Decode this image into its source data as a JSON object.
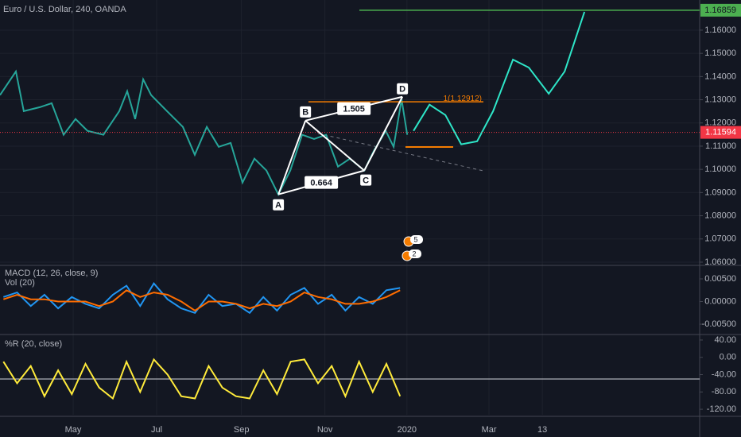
{
  "header": {
    "title": "Euro / U.S. Dollar, 240, OANDA"
  },
  "chart_data": [
    {
      "type": "line",
      "xlim": [
        67.5,
        579
      ],
      "ylim": [
        1.0593,
        1.173
      ],
      "xticks": [
        {
          "value": 121,
          "label": "May"
        },
        {
          "value": 182,
          "label": "Jul"
        },
        {
          "value": 244,
          "label": "Sep"
        },
        {
          "value": 305,
          "label": "Nov"
        },
        {
          "value": 365,
          "label": "2020"
        },
        {
          "value": 425,
          "label": "Mar"
        },
        {
          "value": 464,
          "label": "13"
        }
      ],
      "yticks": [
        {
          "value": 1.06,
          "label": "1.06000"
        },
        {
          "value": 1.07,
          "label": "1.07000"
        },
        {
          "value": 1.08,
          "label": "1.08000"
        },
        {
          "value": 1.09,
          "label": "1.09000"
        },
        {
          "value": 1.1,
          "label": "1.10000"
        },
        {
          "value": 1.11,
          "label": "1.11000"
        },
        {
          "value": 1.12,
          "label": "1.12000"
        },
        {
          "value": 1.13,
          "label": "1.13000"
        },
        {
          "value": 1.14,
          "label": "1.14000"
        },
        {
          "value": 1.15,
          "label": "1.15000"
        },
        {
          "value": 1.16,
          "label": "1.16000"
        }
      ],
      "grid": true,
      "series": [
        {
          "color": "#26a69a",
          "x": [
            67.5,
            79.1,
            84.9,
            96.6,
            105.3,
            114.0,
            122.7,
            131.5,
            143.1,
            154.7,
            160.5,
            166.3,
            172.2,
            178.0,
            189.6,
            201.2,
            209.9,
            218.7,
            227.4,
            236.1,
            244.8,
            253.5,
            262.3,
            271.0,
            279.7,
            288.4,
            297.1,
            305.9,
            314.6,
            323.3,
            333.8,
            340.8,
            349.5,
            355.3,
            361.1,
            365.2
          ],
          "values": [
            1.132,
            1.1422,
            1.1251,
            1.1268,
            1.1285,
            1.1149,
            1.1217,
            1.1166,
            1.1149,
            1.1251,
            1.1337,
            1.1217,
            1.1388,
            1.132,
            1.1251,
            1.1183,
            1.1063,
            1.1183,
            1.1097,
            1.1114,
            1.0943,
            1.1046,
            1.0995,
            1.0892,
            1.0995,
            1.1149,
            1.1131,
            1.1149,
            1.1012,
            1.1046,
            1.0995,
            1.108,
            1.1166,
            1.1097,
            1.1302,
            1.1149
          ]
        },
        {
          "color": "#2ee6c8",
          "x": [
            369.8,
            381.5,
            393.1,
            404.7,
            416.3,
            428.0,
            442.5,
            454.1,
            468.7,
            480.3,
            494.8
          ],
          "values": [
            1.1166,
            1.1279,
            1.1234,
            1.1108,
            1.1121,
            1.1251,
            1.1473,
            1.1439,
            1.1326,
            1.1422,
            1.1679
          ]
        }
      ],
      "levels": [
        {
          "value": 1.16859,
          "label": "1.16859",
          "color": "#4caf50"
        },
        {
          "value": 1.12912,
          "label": "1(1.12912)",
          "color": "#f57c00"
        },
        {
          "value": 1.11594,
          "label": "1.11594",
          "color": "#f23645"
        }
      ],
      "pattern": {
        "labels": [
          "A",
          "B",
          "C",
          "D"
        ],
        "x": [
          271.0,
          290.8,
          333.8,
          361.7
        ],
        "values": [
          1.0892,
          1.121,
          1.0995,
          1.1313
        ],
        "ratios": [
          0.664,
          1.505
        ]
      },
      "events": [
        5,
        2
      ]
    },
    {
      "type": "line",
      "title": "MACD (12, 26, close, 9)",
      "subtitle": "Vol (20)",
      "ylim": [
        -0.0071,
        0.00763
      ],
      "yticks": [
        {
          "value": 0.005,
          "label": "0.00500"
        },
        {
          "value": 0,
          "label": "0.00000"
        },
        {
          "value": -0.005,
          "label": "-0.00500"
        }
      ],
      "series": [
        {
          "color": "#2196f3",
          "x": [
            70,
            80,
            90,
            100,
            110,
            120,
            130,
            140,
            150,
            160,
            170,
            180,
            190,
            200,
            210,
            220,
            230,
            240,
            250,
            260,
            270,
            280,
            290,
            300,
            310,
            320,
            330,
            340,
            350,
            360
          ],
          "values": [
            0.001,
            0.002,
            -0.001,
            0.0015,
            -0.0015,
            0.001,
            -0.0005,
            -0.0015,
            0.0015,
            0.0035,
            -0.001,
            0.004,
            0.0005,
            -0.0015,
            -0.0025,
            0.0015,
            -0.001,
            -0.0005,
            -0.0025,
            0.001,
            -0.002,
            0.0015,
            0.003,
            -0.0005,
            0.0015,
            -0.002,
            0.001,
            -0.0005,
            0.0025,
            0.003
          ]
        },
        {
          "color": "#ff6d00",
          "x": [
            70,
            80,
            90,
            100,
            110,
            120,
            130,
            140,
            150,
            160,
            170,
            180,
            190,
            200,
            210,
            220,
            230,
            240,
            250,
            260,
            270,
            280,
            290,
            300,
            310,
            320,
            330,
            340,
            350,
            360
          ],
          "values": [
            0.0005,
            0.0015,
            0.0005,
            0.0005,
            0,
            0,
            0,
            -0.001,
            0,
            0.0025,
            0.001,
            0.002,
            0.0015,
            0,
            -0.002,
            0,
            0,
            -0.0005,
            -0.0015,
            -0.0005,
            -0.001,
            0,
            0.002,
            0.001,
            0.0005,
            -0.0005,
            -0.0005,
            0,
            0.001,
            0.0025
          ]
        }
      ]
    },
    {
      "type": "line",
      "title": "%R (20, close)",
      "ylim": [
        -132.7,
        50.9
      ],
      "yticks": [
        {
          "value": 40,
          "label": "40.00"
        },
        {
          "value": 0,
          "label": "0.00"
        },
        {
          "value": -40,
          "label": "-40.00"
        },
        {
          "value": -80,
          "label": "-80.00"
        },
        {
          "value": -120,
          "label": "-120.00"
        }
      ],
      "series": [
        {
          "color": "#ffeb3b",
          "x": [
            70,
            80,
            90,
            100,
            110,
            120,
            130,
            140,
            150,
            160,
            170,
            180,
            190,
            200,
            210,
            220,
            230,
            240,
            250,
            260,
            270,
            280,
            290,
            300,
            310,
            320,
            330,
            340,
            350,
            360
          ],
          "values": [
            -10,
            -60,
            -20,
            -90,
            -30,
            -85,
            -15,
            -70,
            -95,
            -10,
            -80,
            -5,
            -40,
            -90,
            -95,
            -20,
            -70,
            -90,
            -95,
            -30,
            -85,
            -10,
            -5,
            -60,
            -20,
            -90,
            -10,
            -80,
            -15,
            -90
          ]
        }
      ],
      "levels": [
        {
          "value": -50,
          "color": "#d1d4dc"
        }
      ]
    }
  ]
}
